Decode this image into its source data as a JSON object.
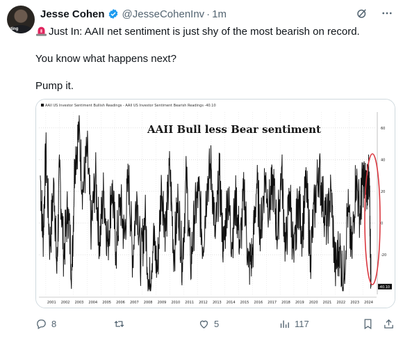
{
  "post": {
    "author_name": "Jesse Cohen",
    "handle": "@JesseCohenInv",
    "separator": "·",
    "time": "1m",
    "avatar_tag": "sting",
    "lines": [
      "Just In: AAII net sentiment is just shy of the most bearish on record.",
      "You know what happens next?",
      "Pump it."
    ]
  },
  "icons": {
    "verified": "verified-badge-icon",
    "siren": "police-siren-emoji-icon",
    "grok": "grok-icon",
    "more": "more-options-icon",
    "reply": "reply-icon",
    "repost": "repost-icon",
    "like": "like-icon",
    "views": "views-icon",
    "bookmark": "bookmark-icon",
    "share": "share-icon"
  },
  "colors": {
    "verified": "#1d9bf0",
    "siren": "#e0245e",
    "secondary_text": "#536471",
    "highlight_ellipse": "#d9363e"
  },
  "actions": {
    "replies": "8",
    "reposts": "",
    "likes": "5",
    "views": "117"
  },
  "chart_data": {
    "type": "line",
    "title": "AAII Bull less Bear sentiment",
    "legend": "AAII US Investor Sentiment Bullish Readings - AAII US Investor Sentiment Bearish Readings -40.10",
    "last_value_label": "-40.10",
    "y_ticks": [
      60,
      40,
      20,
      0,
      -20
    ],
    "ylim": [
      -45,
      70
    ],
    "x_ticks": [
      "2001",
      "2002",
      "2003",
      "2004",
      "2005",
      "2006",
      "2007",
      "2008",
      "2009",
      "2010",
      "2011",
      "2012",
      "2013",
      "2014",
      "2015",
      "2016",
      "2017",
      "2018",
      "2019",
      "2020",
      "2021",
      "2022",
      "2023",
      "2024"
    ],
    "xlim": [
      2000.5,
      2025
    ],
    "grid": true,
    "annotation": "red ellipse around 2024 decline",
    "series": [
      {
        "x": [
          2000.6,
          2000.8,
          2001.0,
          2001.3,
          2001.6,
          2001.8,
          2002.0,
          2002.3,
          2002.6,
          2002.9,
          2003.1,
          2003.4,
          2003.7,
          2004.0,
          2004.3,
          2004.6,
          2004.9,
          2005.2,
          2005.5,
          2005.8,
          2006.1,
          2006.4,
          2006.7,
          2007.0,
          2007.3,
          2007.6,
          2007.9,
          2008.2,
          2008.5,
          2008.8,
          2009.1,
          2009.4,
          2009.7,
          2010.0,
          2010.3,
          2010.6,
          2010.9,
          2011.2,
          2011.5,
          2011.8,
          2012.1,
          2012.4,
          2012.7,
          2013.0,
          2013.3,
          2013.6,
          2013.9,
          2014.2,
          2014.5,
          2014.8,
          2015.1,
          2015.4,
          2015.7,
          2016.0,
          2016.3,
          2016.6,
          2016.9,
          2017.2,
          2017.5,
          2017.8,
          2018.1,
          2018.4,
          2018.7,
          2019.0,
          2019.3,
          2019.6,
          2019.9,
          2020.2,
          2020.5,
          2020.8,
          2021.1,
          2021.4,
          2021.7,
          2022.0,
          2022.3,
          2022.6,
          2022.9,
          2023.2,
          2023.5,
          2023.8,
          2024.0,
          2024.2,
          2024.4,
          2024.5,
          2024.6
        ],
        "y": [
          30,
          -10,
          45,
          -15,
          25,
          -32,
          35,
          -20,
          10,
          -30,
          40,
          58,
          20,
          45,
          -5,
          30,
          -12,
          20,
          -15,
          25,
          -18,
          15,
          -10,
          30,
          -22,
          20,
          -25,
          5,
          -42,
          -10,
          -30,
          25,
          -5,
          35,
          -20,
          15,
          -25,
          30,
          -28,
          5,
          20,
          -15,
          25,
          35,
          -10,
          30,
          -18,
          20,
          -12,
          15,
          -15,
          22,
          -28,
          -20,
          25,
          -5,
          30,
          10,
          25,
          -8,
          35,
          -18,
          20,
          -25,
          15,
          -5,
          25,
          -20,
          10,
          35,
          15,
          -2,
          20,
          -30,
          -15,
          -38,
          10,
          -20,
          30,
          5,
          28,
          22,
          30,
          10,
          -40.1
        ]
      }
    ]
  }
}
